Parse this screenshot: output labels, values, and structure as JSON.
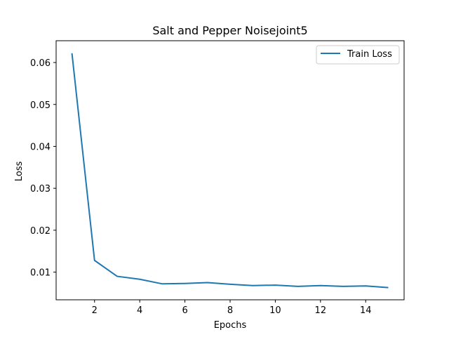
{
  "chart_data": {
    "type": "line",
    "title": "Salt and Pepper Noisejoint5",
    "xlabel": "Epochs",
    "ylabel": "Loss",
    "xlim": [
      0.3,
      15.7
    ],
    "ylim": [
      0.0034,
      0.0652
    ],
    "xticks": [
      2,
      4,
      6,
      8,
      10,
      12,
      14
    ],
    "xtick_labels": [
      "2",
      "4",
      "6",
      "8",
      "10",
      "12",
      "14"
    ],
    "yticks": [
      0.01,
      0.02,
      0.03,
      0.04,
      0.05,
      0.06
    ],
    "ytick_labels": [
      "0.01",
      "0.02",
      "0.03",
      "0.04",
      "0.05",
      "0.06"
    ],
    "grid": false,
    "legend_position": "upper right",
    "series": [
      {
        "name": "Train Loss",
        "color": "#1f77b4",
        "x": [
          1,
          2,
          3,
          4,
          5,
          6,
          7,
          8,
          9,
          10,
          11,
          12,
          13,
          14,
          15
        ],
        "values": [
          0.0622,
          0.0128,
          0.009,
          0.0083,
          0.0072,
          0.0073,
          0.0075,
          0.0071,
          0.0068,
          0.0069,
          0.0066,
          0.0068,
          0.0066,
          0.0067,
          0.0063
        ]
      }
    ]
  }
}
